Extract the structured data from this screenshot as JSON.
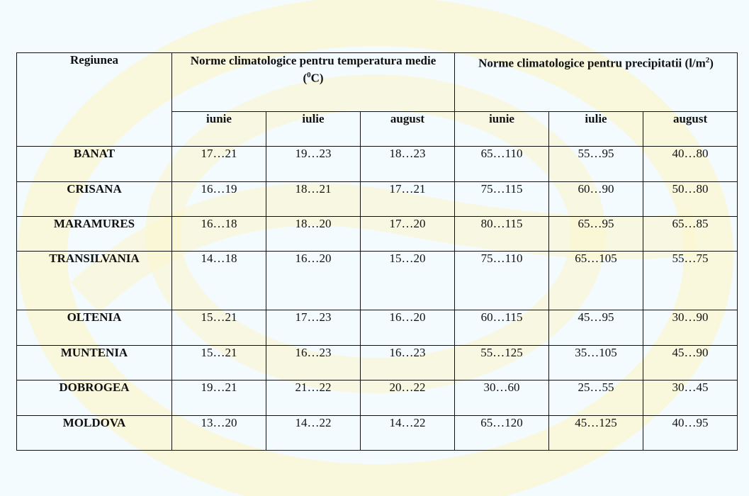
{
  "table": {
    "region_header": "Regiunea",
    "temp_header_main": "Norme climatologice pentru temperatura medie",
    "temp_header_unit_pre": "(",
    "temp_header_unit_sup": "0",
    "temp_header_unit_post": "C)",
    "precip_header_main": "Norme climatologice pentru precipitatii (l/m",
    "precip_header_sup": "2",
    "precip_header_post": ")",
    "months": [
      "iunie",
      "iulie",
      "august",
      "iunie",
      "iulie",
      "august"
    ],
    "rows": [
      {
        "region": "BANAT",
        "values": [
          "17…21",
          "19…23",
          "18…23",
          "65…110",
          "55…95",
          "40…80"
        ]
      },
      {
        "region": "CRISANA",
        "values": [
          "16…19",
          "18…21",
          "17…21",
          "75…115",
          "60…90",
          "50…80"
        ]
      },
      {
        "region": "MARAMURES",
        "values": [
          "16…18",
          "18…20",
          "17…20",
          "80…115",
          "65…95",
          "65…85"
        ]
      },
      {
        "region": "TRANSILVANIA",
        "values": [
          "14…18",
          "16…20",
          "15…20",
          "75…110",
          "65…105",
          "55…75"
        ]
      },
      {
        "region": "OLTENIA",
        "values": [
          "15…21",
          "17…23",
          "16…20",
          "60…115",
          "45…95",
          "30…90"
        ]
      },
      {
        "region": "MUNTENIA",
        "values": [
          "15…21",
          "16…23",
          "16…23",
          "55…125",
          "35…105",
          "45…90"
        ]
      },
      {
        "region": "DOBROGEA",
        "values": [
          "19…21",
          "21…22",
          "20…22",
          "30…60",
          "25…55",
          "30…45"
        ]
      },
      {
        "region": "MOLDOVA",
        "values": [
          "13…20",
          "14…22",
          "14…22",
          "65…120",
          "45…125",
          "40…95"
        ]
      }
    ]
  },
  "colors": {
    "background": "#f3fbfe",
    "watermark": "#fbf6cf",
    "border": "#111111"
  }
}
